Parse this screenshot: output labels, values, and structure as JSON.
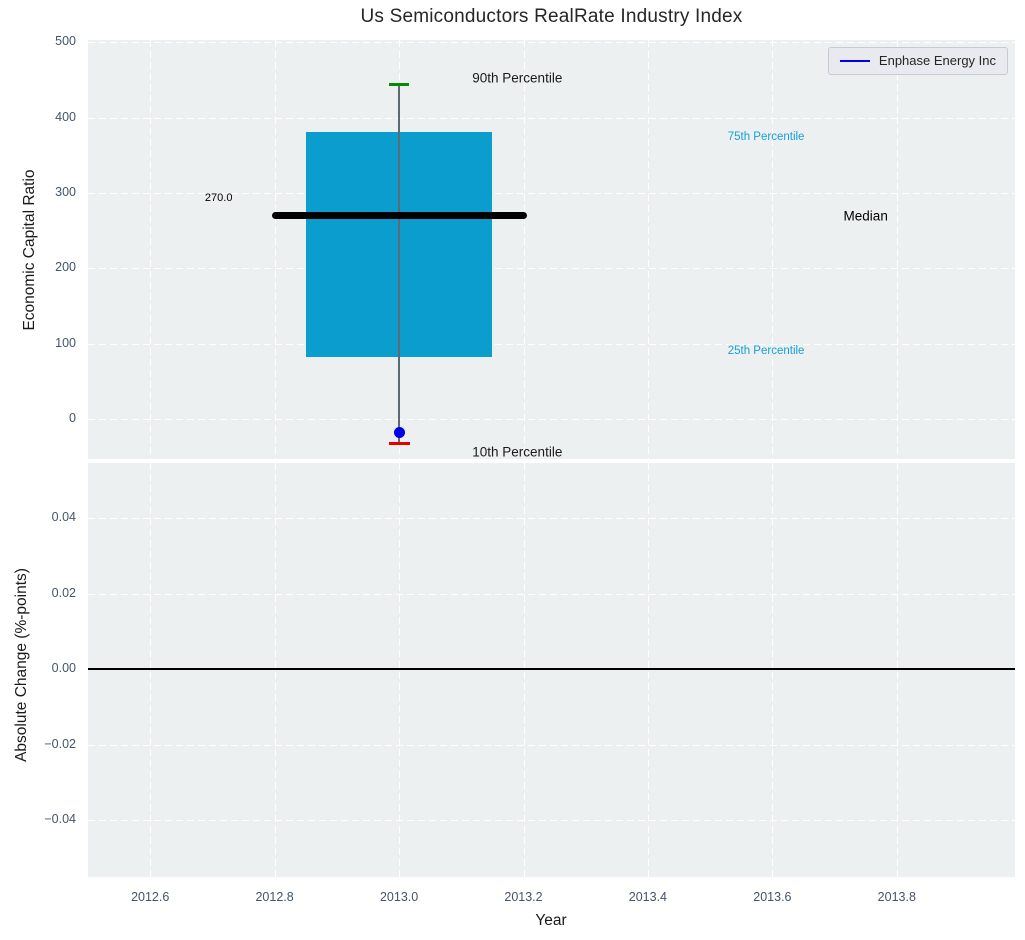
{
  "figure": {
    "background": "#ffffff",
    "plot_background": "#ecf0f1",
    "tick_color": "#44546a"
  },
  "legend": {
    "label": "Enphase Energy Inc",
    "line_color": "#0000ee"
  },
  "chart_data": [
    {
      "type": "boxplot",
      "title": "Us Semiconductors RealRate Industry Index",
      "ylabel": "Economic Capital Ratio",
      "grid": true,
      "legend_position": "upper right",
      "xlim": [
        2012.5,
        2013.99
      ],
      "ylim": [
        -53,
        503
      ],
      "yticks": [
        {
          "v": 0,
          "label": "0"
        },
        {
          "v": 100,
          "label": "100"
        },
        {
          "v": 200,
          "label": "200"
        },
        {
          "v": 300,
          "label": "300"
        },
        {
          "v": 400,
          "label": "400"
        },
        {
          "v": 500,
          "label": "500"
        }
      ],
      "xticks": [
        {
          "v": 2012.6,
          "label": "2012.6"
        },
        {
          "v": 2012.8,
          "label": "2012.8"
        },
        {
          "v": 2013.0,
          "label": "2013.0"
        },
        {
          "v": 2013.2,
          "label": "2013.2"
        },
        {
          "v": 2013.4,
          "label": "2013.4"
        },
        {
          "v": 2013.6,
          "label": "2013.6"
        },
        {
          "v": 2013.8,
          "label": "2013.8"
        }
      ],
      "box": {
        "x": 2013.0,
        "p90": 444,
        "p75": 381,
        "median": 270,
        "p25": 82,
        "p10": -32,
        "company_value": -18,
        "box_half_width": 0.15,
        "median_half_width": 0.205,
        "colors": {
          "box": "#0a9dce",
          "median": "#000000",
          "whisker": "#5c6a73",
          "p90_cap": "#068a06",
          "p10_cap": "#e60000",
          "dot": "#0000ee"
        }
      },
      "annotations": [
        {
          "text": "90th Percentile",
          "x": 2013.19,
          "y": 452,
          "color": "#1a1a1a",
          "size": 13.5
        },
        {
          "text": "75th Percentile",
          "x": 2013.59,
          "y": 374,
          "color": "#179fd6",
          "size": 11.5
        },
        {
          "text": "Median",
          "x": 2013.75,
          "y": 270,
          "color": "#000000",
          "size": 13.5
        },
        {
          "text": "25th Percentile",
          "x": 2013.59,
          "y": 90,
          "color": "#179fd6",
          "size": 11.5
        },
        {
          "text": "10th Percentile",
          "x": 2013.19,
          "y": -44,
          "color": "#1a1a1a",
          "size": 13.5
        },
        {
          "text": "270.0",
          "x": 2012.71,
          "y": 294,
          "color": "#000000",
          "size": 11
        }
      ]
    },
    {
      "type": "line",
      "ylabel": "Absolute Change (%-points)",
      "xlabel": "Year",
      "grid": true,
      "xlim": [
        2012.5,
        2013.99
      ],
      "ylim": [
        -0.0551,
        0.0546
      ],
      "yticks": [
        {
          "v": -0.04,
          "label": "−0.04"
        },
        {
          "v": -0.02,
          "label": "−0.02"
        },
        {
          "v": 0,
          "label": "0.00"
        },
        {
          "v": 0.02,
          "label": "0.02"
        },
        {
          "v": 0.04,
          "label": "0.04"
        }
      ],
      "xticks": [
        {
          "v": 2012.6,
          "label": "2012.6"
        },
        {
          "v": 2012.8,
          "label": "2012.8"
        },
        {
          "v": 2013.0,
          "label": "2013.0"
        },
        {
          "v": 2013.2,
          "label": "2013.2"
        },
        {
          "v": 2013.4,
          "label": "2013.4"
        },
        {
          "v": 2013.6,
          "label": "2013.6"
        },
        {
          "v": 2013.8,
          "label": "2013.8"
        }
      ],
      "zero_line": {
        "y": 0,
        "color": "#000000"
      },
      "series": [
        {
          "name": "Enphase Energy Inc",
          "color": "#0000ee",
          "x": [],
          "y": []
        }
      ]
    }
  ]
}
